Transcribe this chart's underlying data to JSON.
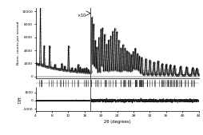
{
  "x_min": 4,
  "x_max": 44,
  "main_ylim": [
    -200,
    10200
  ],
  "diff_ylim": [
    -1200,
    1500
  ],
  "main_yticks": [
    0,
    2000,
    4000,
    6000,
    8000,
    10000
  ],
  "diff_yticks": [
    -1000,
    0,
    1000
  ],
  "xlabel": "2θ (degrees)",
  "ylabel_main": "Norm. counts per second",
  "ylabel_diff": "Diff.",
  "xticks": [
    4,
    8,
    12,
    16,
    20,
    24,
    28,
    32,
    36,
    40,
    44
  ],
  "cutoff_2theta": 17.5,
  "background_color": "#ffffff",
  "line_color": "#000000",
  "dot_color": "#555555",
  "diff_color": "#222222",
  "tick_color": "#222222",
  "vline_color": "#555555"
}
